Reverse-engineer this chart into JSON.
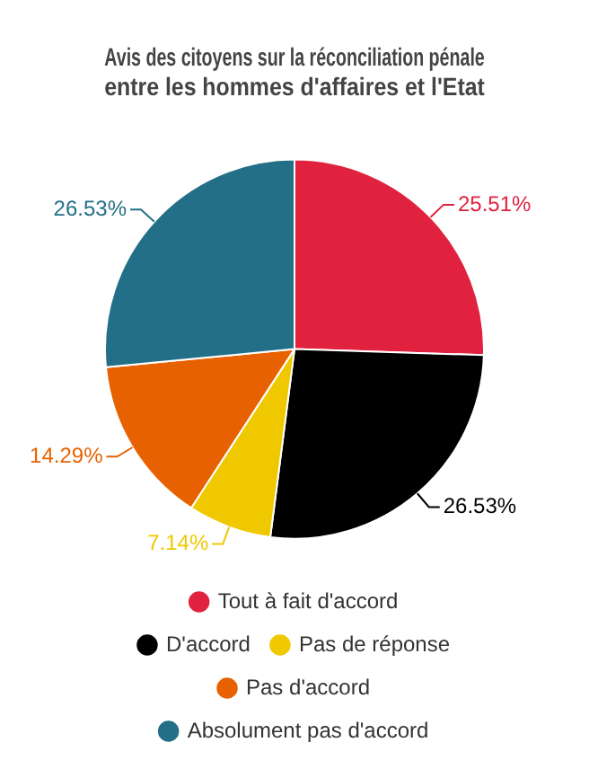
{
  "chart_data": {
    "type": "pie",
    "title": "Avis des citoyens sur la réconciliation pénale entre les hommes d'affaires et l'Etat",
    "categories": [
      "Tout à fait d'accord",
      "D'accord",
      "Pas de réponse",
      "Pas d'accord",
      "Absolument pas d'accord"
    ],
    "values": [
      25.51,
      26.53,
      7.14,
      14.29,
      26.53
    ],
    "colors": [
      "#e0223e",
      "#000000",
      "#efc800",
      "#e86100",
      "#236f87"
    ],
    "value_labels": [
      "25.51%",
      "26.53%",
      "7.14%",
      "14.29%",
      "26.53%"
    ],
    "legend": "bottom"
  }
}
